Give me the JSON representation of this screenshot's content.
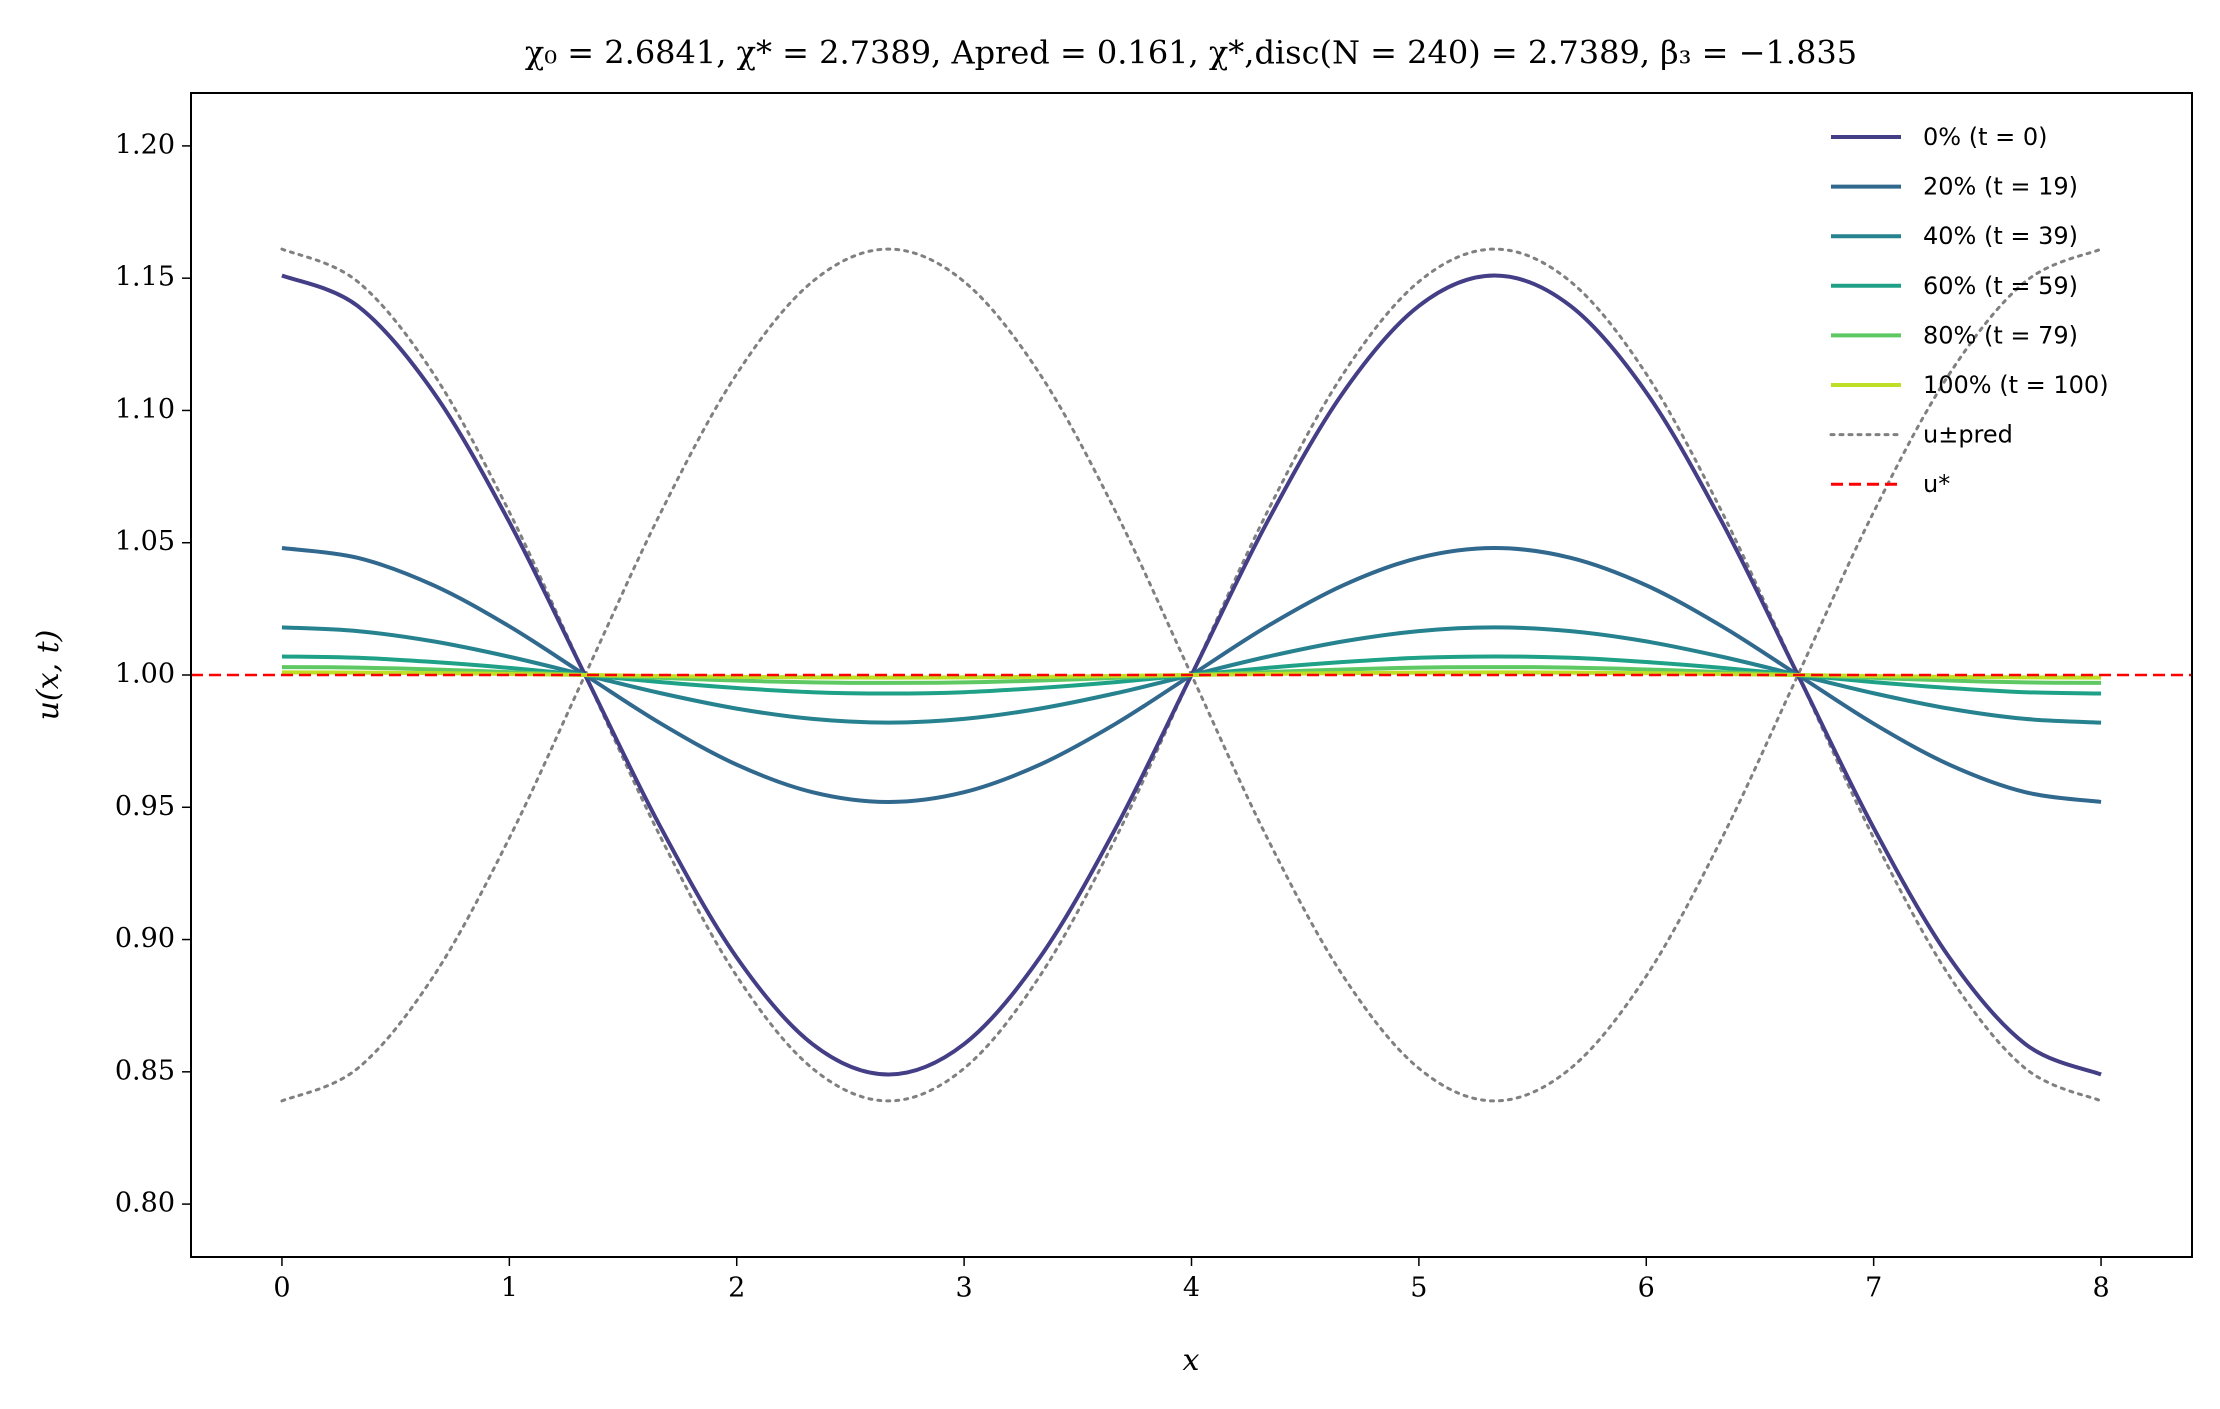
{
  "chart_data": {
    "type": "line",
    "title": "χ₀ = 2.6841,  χ* = 2.7389,  Apred = 0.161,  χ*,disc(N = 240) = 2.7389,  β₃ = −1.835",
    "xlabel": "x",
    "ylabel": "u(x, t)",
    "xlim": [
      -0.4,
      8.4
    ],
    "ylim": [
      0.78,
      1.22
    ],
    "xticks": [
      0,
      1,
      2,
      3,
      4,
      5,
      6,
      7,
      8
    ],
    "yticks": [
      {
        "value": 0.8,
        "label": "0.80"
      },
      0.85,
      {
        "value": 0.9,
        "label": "0.90"
      },
      0.95,
      {
        "value": 1.0,
        "label": "1.00"
      },
      1.05,
      {
        "value": 1.1,
        "label": "1.10"
      },
      1.15,
      {
        "value": 1.2,
        "label": "1.20"
      }
    ],
    "grid": false,
    "legend": "upper right",
    "x": [
      0,
      0.333,
      0.667,
      1,
      1.333,
      1.667,
      2,
      2.333,
      2.667,
      3,
      3.333,
      3.667,
      4,
      4.333,
      4.667,
      5,
      5.333,
      5.667,
      6,
      6.333,
      6.667,
      7,
      7.333,
      7.667,
      8
    ],
    "series": [
      {
        "name": "0% (t = 0)",
        "color": "#433e85",
        "style": "solid",
        "values": [
          1.151,
          1.1395,
          1.1068,
          1.0578,
          1,
          0.9422,
          0.8932,
          0.8605,
          0.849,
          0.8605,
          0.8932,
          0.9422,
          1,
          1.0578,
          1.1068,
          1.1395,
          1.151,
          1.1395,
          1.1068,
          1.0578,
          1,
          0.9422,
          0.8932,
          0.8605,
          0.849
        ]
      },
      {
        "name": "20% (t = 19)",
        "color": "#31688e",
        "style": "solid",
        "values": [
          1.048,
          1.0443,
          1.0339,
          1.0184,
          1,
          0.9816,
          0.9661,
          0.9557,
          0.952,
          0.9557,
          0.9661,
          0.9816,
          1,
          1.0184,
          1.0339,
          1.0443,
          1.048,
          1.0443,
          1.0339,
          1.0184,
          1,
          0.9816,
          0.9661,
          0.9557,
          0.952
        ]
      },
      {
        "name": "40% (t = 39)",
        "color": "#26828e",
        "style": "solid",
        "values": [
          1.018,
          1.0166,
          1.0127,
          1.0069,
          1,
          0.9931,
          0.9873,
          0.9834,
          0.982,
          0.9834,
          0.9873,
          0.9931,
          1,
          1.0069,
          1.0127,
          1.0166,
          1.018,
          1.0166,
          1.0127,
          1.0069,
          1,
          0.9931,
          0.9873,
          0.9834,
          0.982
        ]
      },
      {
        "name": "60% (t = 59)",
        "color": "#1fa187",
        "style": "solid",
        "values": [
          1.007,
          1.0065,
          1.0049,
          1.0027,
          1,
          0.9973,
          0.9951,
          0.9935,
          0.993,
          0.9935,
          0.9951,
          0.9973,
          1,
          1.0027,
          1.0049,
          1.0065,
          1.007,
          1.0065,
          1.0049,
          1.0027,
          1,
          0.9973,
          0.9951,
          0.9935,
          0.993
        ]
      },
      {
        "name": "80% (t = 79)",
        "color": "#5ec962",
        "style": "solid",
        "values": [
          1.003,
          1.0028,
          1.0021,
          1.0011,
          1,
          0.9989,
          0.9979,
          0.9972,
          0.997,
          0.9972,
          0.9979,
          0.9989,
          1,
          1.0011,
          1.0021,
          1.0028,
          1.003,
          1.0028,
          1.0021,
          1.0011,
          1,
          0.9989,
          0.9979,
          0.9972,
          0.997
        ]
      },
      {
        "name": "100% (t = 100)",
        "color": "#bddf26",
        "style": "solid",
        "values": [
          1.001,
          1.0009,
          1.0007,
          1.0004,
          1,
          0.9996,
          0.9993,
          0.9991,
          0.999,
          0.9991,
          0.9993,
          0.9996,
          1,
          1.0004,
          1.0007,
          1.0009,
          1.001,
          1.0009,
          1.0007,
          1.0004,
          1,
          0.9996,
          0.9993,
          0.9991,
          0.999
        ]
      },
      {
        "name": "u±pred",
        "color": "#808080",
        "style": "dotted",
        "values": [
          1.161,
          1.1487,
          1.1138,
          1.0616,
          1,
          0.9384,
          0.8862,
          0.8513,
          0.839,
          0.8513,
          0.8862,
          0.9384,
          1,
          1.0616,
          1.1138,
          1.1487,
          1.161,
          1.1487,
          1.1138,
          1.0616,
          1,
          0.9384,
          0.8862,
          0.8513,
          0.839
        ],
        "values_lower": [
          0.839,
          0.8513,
          0.8862,
          0.9384,
          1,
          1.0616,
          1.1138,
          1.1487,
          1.161,
          1.1487,
          1.1138,
          1.0616,
          1,
          0.9384,
          0.8862,
          0.8513,
          0.839,
          0.8513,
          0.8862,
          0.9384,
          1,
          1.0616,
          1.1138,
          1.1487,
          1.161
        ]
      }
    ],
    "reference_line": {
      "name": "u*",
      "value": 1.0,
      "color": "#ff0000",
      "style": "dashed"
    }
  }
}
